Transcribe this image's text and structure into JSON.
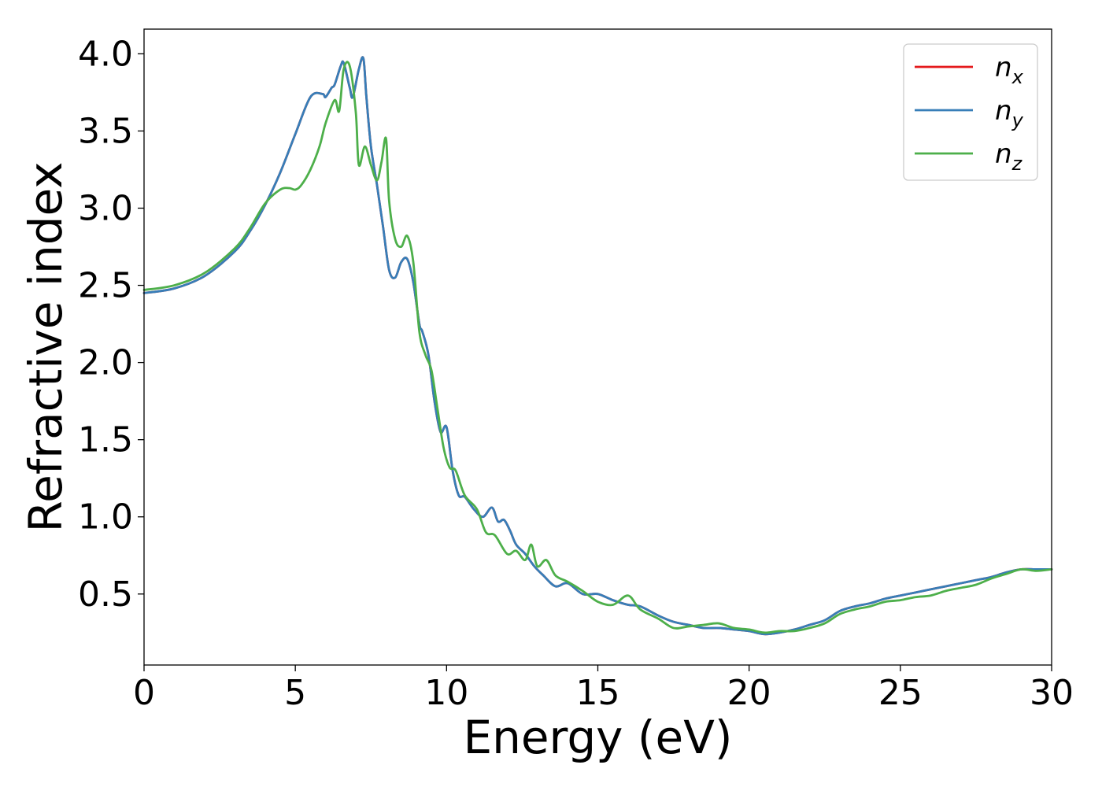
{
  "chart_data": {
    "type": "line",
    "xlabel": "Energy (eV)",
    "ylabel": "Refractive index",
    "xlim": [
      0,
      30
    ],
    "ylim": [
      0.04,
      4.16
    ],
    "xticks": [
      "0",
      "5",
      "10",
      "15",
      "20",
      "25",
      "30"
    ],
    "yticks": [
      "0.5",
      "1.0",
      "1.5",
      "2.0",
      "2.5",
      "3.0",
      "3.5",
      "4.0"
    ],
    "grid": false,
    "legend_position": "top-right",
    "series": [
      {
        "name": "n_x",
        "label_base": "n",
        "label_sub": "x",
        "color": "#e41a1c",
        "x": [
          0,
          1,
          2,
          3,
          3.5,
          4,
          4.5,
          5,
          5.5,
          5.9,
          6.0,
          6.2,
          6.3,
          6.5,
          6.6,
          6.8,
          6.9,
          7.1,
          7.25,
          7.35,
          7.5,
          7.7,
          7.9,
          8.1,
          8.3,
          8.5,
          8.7,
          8.9,
          9.1,
          9.2,
          9.4,
          9.6,
          9.8,
          10.0,
          10.2,
          10.4,
          10.6,
          10.9,
          11.2,
          11.5,
          11.7,
          11.9,
          12.1,
          12.3,
          12.6,
          12.9,
          13.2,
          13.6,
          14.0,
          14.5,
          15.0,
          15.5,
          16.0,
          16.4,
          17.0,
          17.5,
          18.0,
          18.5,
          19.0,
          19.5,
          20.0,
          20.5,
          21.0,
          21.5,
          22.0,
          22.5,
          23.0,
          23.5,
          24.0,
          24.5,
          25.0,
          25.5,
          26.0,
          26.5,
          27.0,
          27.5,
          28.0,
          28.5,
          29.0,
          29.5,
          30.0
        ],
        "y": [
          2.45,
          2.48,
          2.56,
          2.72,
          2.85,
          3.02,
          3.23,
          3.48,
          3.72,
          3.74,
          3.72,
          3.78,
          3.8,
          3.92,
          3.94,
          3.78,
          3.72,
          3.9,
          3.97,
          3.72,
          3.4,
          3.15,
          2.88,
          2.6,
          2.55,
          2.65,
          2.67,
          2.52,
          2.25,
          2.2,
          2.05,
          1.75,
          1.55,
          1.58,
          1.3,
          1.14,
          1.13,
          1.05,
          1.0,
          1.06,
          0.97,
          0.98,
          0.91,
          0.82,
          0.76,
          0.68,
          0.62,
          0.55,
          0.57,
          0.5,
          0.5,
          0.46,
          0.43,
          0.42,
          0.36,
          0.32,
          0.3,
          0.28,
          0.28,
          0.27,
          0.26,
          0.24,
          0.25,
          0.27,
          0.3,
          0.33,
          0.39,
          0.42,
          0.44,
          0.47,
          0.49,
          0.51,
          0.53,
          0.55,
          0.57,
          0.59,
          0.61,
          0.64,
          0.66,
          0.66,
          0.66
        ]
      },
      {
        "name": "n_y",
        "label_base": "n",
        "label_sub": "y",
        "color": "#377eb8",
        "x": [
          0,
          1,
          2,
          3,
          3.5,
          4,
          4.5,
          5,
          5.5,
          5.9,
          6.0,
          6.2,
          6.3,
          6.5,
          6.6,
          6.8,
          6.9,
          7.1,
          7.25,
          7.35,
          7.5,
          7.7,
          7.9,
          8.1,
          8.3,
          8.5,
          8.7,
          8.9,
          9.1,
          9.2,
          9.4,
          9.6,
          9.8,
          10.0,
          10.2,
          10.4,
          10.6,
          10.9,
          11.2,
          11.5,
          11.7,
          11.9,
          12.1,
          12.3,
          12.6,
          12.9,
          13.2,
          13.6,
          14.0,
          14.5,
          15.0,
          15.5,
          16.0,
          16.4,
          17.0,
          17.5,
          18.0,
          18.5,
          19.0,
          19.5,
          20.0,
          20.5,
          21.0,
          21.5,
          22.0,
          22.5,
          23.0,
          23.5,
          24.0,
          24.5,
          25.0,
          25.5,
          26.0,
          26.5,
          27.0,
          27.5,
          28.0,
          28.5,
          29.0,
          29.5,
          30.0
        ],
        "y": [
          2.45,
          2.48,
          2.56,
          2.72,
          2.85,
          3.02,
          3.23,
          3.48,
          3.72,
          3.74,
          3.72,
          3.78,
          3.8,
          3.92,
          3.94,
          3.78,
          3.72,
          3.9,
          3.97,
          3.72,
          3.4,
          3.15,
          2.88,
          2.6,
          2.55,
          2.65,
          2.67,
          2.52,
          2.25,
          2.2,
          2.05,
          1.75,
          1.55,
          1.58,
          1.3,
          1.14,
          1.13,
          1.05,
          1.0,
          1.06,
          0.97,
          0.98,
          0.91,
          0.82,
          0.76,
          0.68,
          0.62,
          0.55,
          0.57,
          0.5,
          0.5,
          0.46,
          0.43,
          0.42,
          0.36,
          0.32,
          0.3,
          0.28,
          0.28,
          0.27,
          0.26,
          0.24,
          0.25,
          0.27,
          0.3,
          0.33,
          0.39,
          0.42,
          0.44,
          0.47,
          0.49,
          0.51,
          0.53,
          0.55,
          0.57,
          0.59,
          0.61,
          0.64,
          0.66,
          0.66,
          0.66
        ]
      },
      {
        "name": "n_z",
        "label_base": "n",
        "label_sub": "z",
        "color": "#4daf4a",
        "x": [
          0,
          1,
          2,
          3,
          3.5,
          4,
          4.5,
          4.8,
          5.0,
          5.2,
          5.5,
          5.8,
          6.0,
          6.3,
          6.45,
          6.6,
          6.8,
          7.0,
          7.1,
          7.3,
          7.5,
          7.7,
          7.85,
          8.0,
          8.1,
          8.3,
          8.5,
          8.7,
          8.9,
          9.1,
          9.3,
          9.5,
          9.7,
          9.9,
          10.1,
          10.3,
          10.6,
          11.0,
          11.3,
          11.6,
          12.0,
          12.3,
          12.6,
          12.8,
          13.0,
          13.3,
          13.6,
          14.0,
          14.5,
          15.0,
          15.5,
          16.0,
          16.4,
          17.0,
          17.5,
          18.0,
          18.5,
          19.0,
          19.5,
          20.0,
          20.5,
          21.0,
          21.5,
          22.0,
          22.5,
          23.0,
          23.5,
          24.0,
          24.5,
          25.0,
          25.5,
          26.0,
          26.5,
          27.0,
          27.5,
          28.0,
          28.5,
          29.0,
          29.5,
          30.0
        ],
        "y": [
          2.47,
          2.5,
          2.58,
          2.74,
          2.87,
          3.03,
          3.12,
          3.13,
          3.12,
          3.15,
          3.25,
          3.4,
          3.55,
          3.7,
          3.63,
          3.9,
          3.92,
          3.62,
          3.28,
          3.4,
          3.28,
          3.18,
          3.3,
          3.45,
          3.05,
          2.8,
          2.75,
          2.82,
          2.65,
          2.2,
          2.05,
          1.95,
          1.7,
          1.45,
          1.32,
          1.3,
          1.14,
          1.05,
          0.9,
          0.88,
          0.76,
          0.78,
          0.72,
          0.82,
          0.68,
          0.72,
          0.62,
          0.58,
          0.52,
          0.45,
          0.43,
          0.49,
          0.4,
          0.34,
          0.28,
          0.29,
          0.3,
          0.31,
          0.28,
          0.27,
          0.25,
          0.26,
          0.26,
          0.28,
          0.31,
          0.37,
          0.4,
          0.42,
          0.45,
          0.46,
          0.48,
          0.49,
          0.52,
          0.54,
          0.56,
          0.6,
          0.63,
          0.66,
          0.65,
          0.66
        ]
      }
    ]
  }
}
